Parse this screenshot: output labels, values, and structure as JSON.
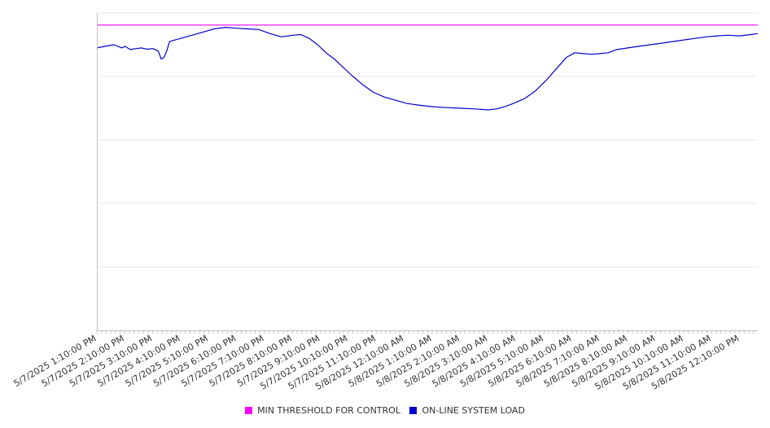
{
  "chart_data": {
    "type": "line",
    "x_tick_labels": [
      "5/7/2025 1:10:00 PM",
      "5/7/2025 2:10:00 PM",
      "5/7/2025 3:10:00 PM",
      "5/7/2025 4:10:00 PM",
      "5/7/2025 5:10:00 PM",
      "5/7/2025 6:10:00 PM",
      "5/7/2025 7:10:00 PM",
      "5/7/2025 8:10:00 PM",
      "5/7/2025 9:10:00 PM",
      "5/7/2025 10:10:00 PM",
      "5/7/2025 11:10:00 PM",
      "5/8/2025 12:10:00 AM",
      "5/8/2025 1:10:00 AM",
      "5/8/2025 2:10:00 AM",
      "5/8/2025 3:10:00 AM",
      "5/8/2025 4:10:00 AM",
      "5/8/2025 5:10:00 AM",
      "5/8/2025 6:10:00 AM",
      "5/8/2025 7:10:00 AM",
      "5/8/2025 8:10:00 AM",
      "5/8/2025 9:10:00 AM",
      "5/8/2025 10:10:00 AM",
      "5/8/2025 11:10:00 AM",
      "5/8/2025 12:10:00 PM"
    ],
    "x_range_hours": [
      0,
      23.65
    ],
    "y_range": [
      0,
      100
    ],
    "y_gridlines": [
      20,
      40,
      60,
      80,
      100
    ],
    "grid": "horizontal",
    "legend_position": "bottom",
    "series": [
      {
        "name": "MIN THRESHOLD FOR CONTROL",
        "color": "#ff00ff",
        "x": [
          0,
          23.65
        ],
        "y": [
          96.2,
          96.2
        ]
      },
      {
        "name": "ON-LINE SYSTEM LOAD",
        "color": "#0000cc",
        "x": [
          0,
          0.3,
          0.6,
          0.9,
          1.0,
          1.2,
          1.4,
          1.6,
          1.8,
          2.0,
          2.2,
          2.3,
          2.4,
          2.5,
          2.6,
          2.8,
          3.0,
          3.4,
          3.8,
          4.2,
          4.6,
          5.0,
          5.4,
          5.8,
          6.2,
          6.6,
          7.0,
          7.3,
          7.6,
          7.9,
          8.2,
          8.5,
          8.8,
          9.1,
          9.5,
          9.9,
          10.3,
          10.7,
          11.1,
          11.5,
          12.0,
          12.5,
          13.0,
          13.5,
          14.0,
          14.3,
          14.6,
          14.9,
          15.3,
          15.7,
          16.1,
          16.5,
          16.8,
          17.1,
          17.4,
          17.7,
          18.0,
          18.3,
          18.6,
          19.0,
          19.4,
          19.8,
          20.2,
          20.6,
          21.0,
          21.4,
          21.8,
          22.2,
          22.6,
          23.0,
          23.4,
          23.65
        ],
        "y": [
          89.0,
          89.5,
          90.0,
          89.0,
          89.5,
          88.5,
          88.8,
          89.0,
          88.6,
          88.8,
          88.0,
          85.5,
          86.0,
          88.0,
          91.0,
          91.5,
          92.0,
          93.0,
          94.0,
          95.0,
          95.5,
          95.2,
          95.0,
          94.8,
          93.5,
          92.5,
          93.0,
          93.2,
          92.0,
          90.0,
          87.5,
          85.5,
          83.0,
          80.5,
          77.5,
          75.0,
          73.5,
          72.5,
          71.5,
          71.0,
          70.5,
          70.2,
          70.0,
          69.8,
          69.5,
          69.8,
          70.5,
          71.5,
          73.0,
          75.5,
          79.0,
          83.0,
          86.0,
          87.5,
          87.2,
          87.0,
          87.2,
          87.5,
          88.5,
          89.0,
          89.5,
          90.0,
          90.5,
          91.0,
          91.5,
          92.0,
          92.5,
          92.8,
          93.0,
          92.8,
          93.2,
          93.5
        ]
      }
    ]
  }
}
